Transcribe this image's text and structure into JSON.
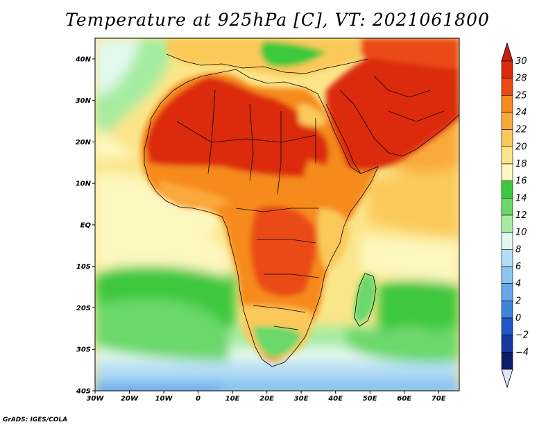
{
  "title": "Temperature at 925hPa [C], VT: 2021061800",
  "credit": "GrADS: IGES/COLA",
  "map": {
    "projection": "lat-lon",
    "lon_range": [
      -30,
      76
    ],
    "lat_range": [
      -40,
      45
    ],
    "lat_ticks": [
      {
        "value": 40,
        "label": "40N"
      },
      {
        "value": 30,
        "label": "30N"
      },
      {
        "value": 20,
        "label": "20N"
      },
      {
        "value": 10,
        "label": "10N"
      },
      {
        "value": 0,
        "label": "EQ"
      },
      {
        "value": -10,
        "label": "10S"
      },
      {
        "value": -20,
        "label": "20S"
      },
      {
        "value": -30,
        "label": "30S"
      },
      {
        "value": -40,
        "label": "40S"
      }
    ],
    "lon_ticks": [
      {
        "value": -30,
        "label": "30W"
      },
      {
        "value": -20,
        "label": "20W"
      },
      {
        "value": -10,
        "label": "10W"
      },
      {
        "value": 0,
        "label": "0"
      },
      {
        "value": 10,
        "label": "10E"
      },
      {
        "value": 20,
        "label": "20E"
      },
      {
        "value": 30,
        "label": "30E"
      },
      {
        "value": 40,
        "label": "40E"
      },
      {
        "value": 50,
        "label": "50E"
      },
      {
        "value": 60,
        "label": "60E"
      },
      {
        "value": 70,
        "label": "70E"
      }
    ]
  },
  "colorbar": {
    "levels": [
      {
        "label": "30",
        "color": "#dc2a0a"
      },
      {
        "label": "28",
        "color": "#ea4b12"
      },
      {
        "label": "25",
        "color": "#f68b1e"
      },
      {
        "label": "24",
        "color": "#f9a93a"
      },
      {
        "label": "22",
        "color": "#fbc95a"
      },
      {
        "label": "20",
        "color": "#fbe58a"
      },
      {
        "label": "18",
        "color": "#fdf7c0"
      },
      {
        "label": "16",
        "color": "#3cc83c"
      },
      {
        "label": "14",
        "color": "#6ad86a"
      },
      {
        "label": "12",
        "color": "#a6eca0"
      },
      {
        "label": "10",
        "color": "#e2f8ee"
      },
      {
        "label": "8",
        "color": "#b4dcf6"
      },
      {
        "label": "6",
        "color": "#8cc4f0"
      },
      {
        "label": "4",
        "color": "#64a8ea"
      },
      {
        "label": "2",
        "color": "#3c84de"
      },
      {
        "label": "0",
        "color": "#2058c8"
      },
      {
        "label": "-2",
        "color": "#1438a0"
      },
      {
        "label": "-4",
        "color": "#0a1e6e"
      }
    ],
    "top_arrow_color": "#c81e0a",
    "bottom_arrow_color": "#e2e2fa"
  }
}
